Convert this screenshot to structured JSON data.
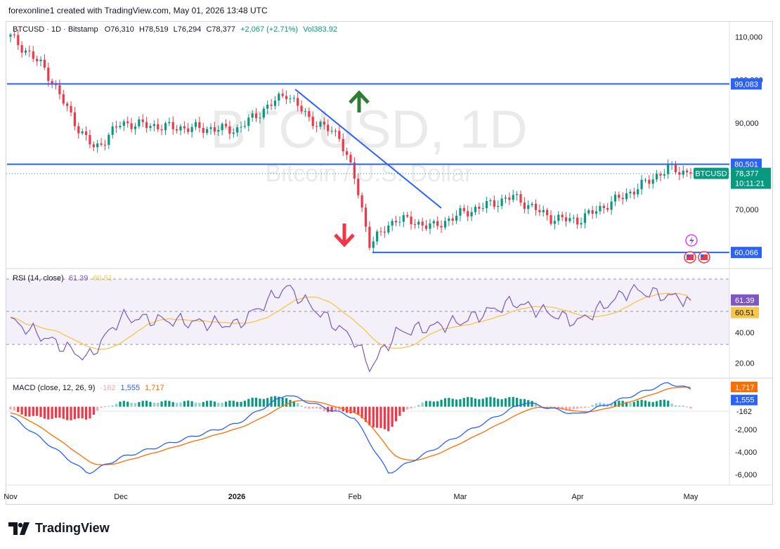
{
  "header": {
    "attribution": "forexonline1 created with TradingView.com, May 01, 2026 13:48 UTC"
  },
  "legend": {
    "symbol": "BTCUSD · 1D · Bitstamp",
    "open": "O76,310",
    "high": "H78,519",
    "low": "L76,294",
    "close": "C78,377",
    "change": "+2,067 (+2.71%)",
    "volume": "Vol383.92"
  },
  "watermark": {
    "ticker": "BTCUSD, 1D",
    "name": "Bitcoin / U.S. Dollar"
  },
  "footer": {
    "brand": "TradingView"
  },
  "colors": {
    "up": "#089981",
    "down": "#f23645",
    "line": "#2962ff",
    "rsi": "#7e57c2",
    "rsima": "#f7c548",
    "signal": "#ff6d00"
  },
  "chart_data": [
    {
      "type": "candlestick",
      "title": "BTCUSD · 1D · Bitstamp",
      "x_ticks": [
        "Nov",
        "Dec",
        "2026",
        "Feb",
        "Mar",
        "Apr",
        "May"
      ],
      "y_ticks": [
        "110,000",
        "100,000",
        "90,000",
        "70,000"
      ],
      "ylim": [
        57000,
        112000
      ],
      "anchor_points": [
        {
          "x": "Nov",
          "y": 110000
        },
        {
          "x": "Nov 10",
          "y": 103000
        },
        {
          "x": "Nov 20",
          "y": 88000
        },
        {
          "x": "Nov 24",
          "y": 84000
        },
        {
          "x": "Dec",
          "y": 90000
        },
        {
          "x": "Dec 15",
          "y": 89000
        },
        {
          "x": "2026",
          "y": 88500
        },
        {
          "x": "Jan 14",
          "y": 97000
        },
        {
          "x": "Jan 20",
          "y": 91000
        },
        {
          "x": "Jan 28",
          "y": 87000
        },
        {
          "x": "Feb",
          "y": 77000
        },
        {
          "x": "Feb 5",
          "y": 62000
        },
        {
          "x": "Feb 12",
          "y": 68000
        },
        {
          "x": "Feb 22",
          "y": 66000
        },
        {
          "x": "Mar",
          "y": 69000
        },
        {
          "x": "Mar 15",
          "y": 73000
        },
        {
          "x": "Mar 25",
          "y": 68000
        },
        {
          "x": "Apr",
          "y": 67500
        },
        {
          "x": "Apr 15",
          "y": 74000
        },
        {
          "x": "Apr 25",
          "y": 79500
        },
        {
          "x": "May",
          "y": 78377
        }
      ],
      "horizontal_levels": [
        {
          "label": "99,083",
          "value": 99083
        },
        {
          "label": "80,501",
          "value": 80501
        },
        {
          "label": "60,066",
          "value": 60066
        }
      ],
      "last_price": {
        "symbol": "BTCUSD",
        "value": "78,377",
        "countdown": "10:11:21"
      }
    },
    {
      "type": "line",
      "title": "RSI (14, close)",
      "value_rsi": "61.39",
      "value_ma": "60.51",
      "y_ticks": [
        "40.00",
        "20.00"
      ],
      "ylim": [
        12,
        82
      ],
      "levels": [
        70,
        50,
        30
      ],
      "anchor_points": [
        {
          "x": "Nov",
          "y": 48
        },
        {
          "x": "Nov 22",
          "y": 23
        },
        {
          "x": "Dec",
          "y": 50
        },
        {
          "x": "2026",
          "y": 45
        },
        {
          "x": "Jan 14",
          "y": 70
        },
        {
          "x": "Feb",
          "y": 35
        },
        {
          "x": "Feb 5",
          "y": 17
        },
        {
          "x": "Feb 12",
          "y": 40
        },
        {
          "x": "Mar",
          "y": 47
        },
        {
          "x": "Mar 15",
          "y": 60
        },
        {
          "x": "Apr",
          "y": 47
        },
        {
          "x": "Apr 15",
          "y": 68
        },
        {
          "x": "May",
          "y": 61.39
        }
      ]
    },
    {
      "type": "bar",
      "title": "MACD (close, 12, 26, 9)",
      "value_hist": "-162",
      "value_macd": "1,555",
      "value_signal": "1,717",
      "y_ticks": [
        "-2,000",
        "-4,000",
        "-6,000"
      ],
      "ylim": [
        -6800,
        2400
      ],
      "anchor_points": [
        {
          "x": "Nov",
          "macd": -800
        },
        {
          "x": "Nov 22",
          "macd": -5900
        },
        {
          "x": "Dec",
          "macd": -4500
        },
        {
          "x": "2026",
          "macd": -1500
        },
        {
          "x": "Jan 14",
          "macd": 1100
        },
        {
          "x": "Feb",
          "macd": -1000
        },
        {
          "x": "Feb 10",
          "macd": -5900
        },
        {
          "x": "Mar",
          "macd": -2500
        },
        {
          "x": "Mar 18",
          "macd": 400
        },
        {
          "x": "Apr",
          "macd": -700
        },
        {
          "x": "Apr 25",
          "macd": 2100
        },
        {
          "x": "May",
          "macd": 1555
        }
      ]
    }
  ]
}
